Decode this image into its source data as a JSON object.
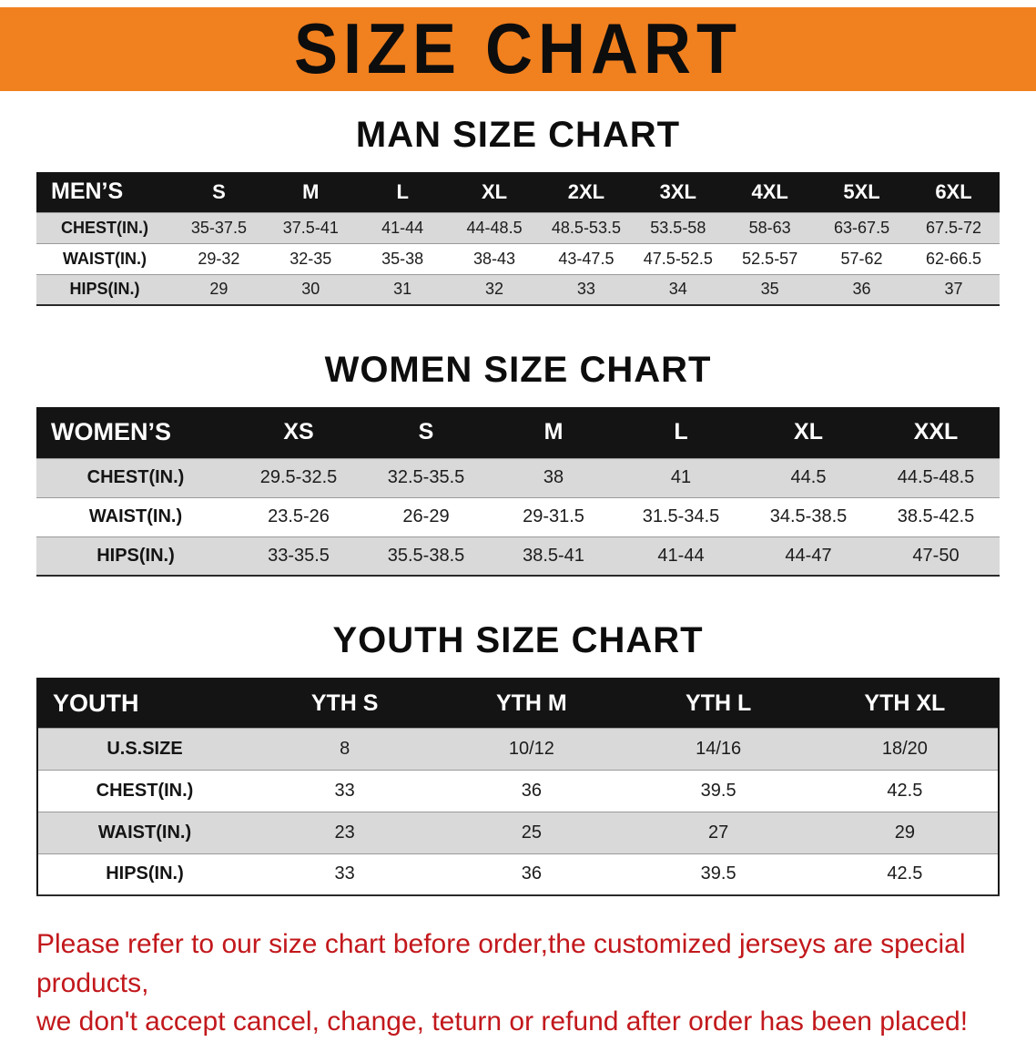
{
  "banner": {
    "title": "SIZE CHART"
  },
  "colors": {
    "banner_bg": "#f1801f",
    "table_header_bg": "#141414",
    "row_shade": "#d9d9d9",
    "notice_text": "#c2181c"
  },
  "sections": [
    {
      "id": "men",
      "heading": "MAN SIZE CHART",
      "label": "MEN’S",
      "columns": [
        "S",
        "M",
        "L",
        "XL",
        "2XL",
        "3XL",
        "4XL",
        "5XL",
        "6XL"
      ],
      "rows": [
        {
          "label": "CHEST(IN.)",
          "values": [
            "35-37.5",
            "37.5-41",
            "41-44",
            "44-48.5",
            "48.5-53.5",
            "53.5-58",
            "58-63",
            "63-67.5",
            "67.5-72"
          ]
        },
        {
          "label": "WAIST(IN.)",
          "values": [
            "29-32",
            "32-35",
            "35-38",
            "38-43",
            "43-47.5",
            "47.5-52.5",
            "52.5-57",
            "57-62",
            "62-66.5"
          ]
        },
        {
          "label": "HIPS(IN.)",
          "values": [
            "29",
            "30",
            "31",
            "32",
            "33",
            "34",
            "35",
            "36",
            "37"
          ]
        }
      ]
    },
    {
      "id": "women",
      "heading": "WOMEN SIZE CHART",
      "label": "WOMEN’S",
      "columns": [
        "XS",
        "S",
        "M",
        "L",
        "XL",
        "XXL"
      ],
      "rows": [
        {
          "label": "CHEST(IN.)",
          "values": [
            "29.5-32.5",
            "32.5-35.5",
            "38",
            "41",
            "44.5",
            "44.5-48.5"
          ]
        },
        {
          "label": "WAIST(IN.)",
          "values": [
            "23.5-26",
            "26-29",
            "29-31.5",
            "31.5-34.5",
            "34.5-38.5",
            "38.5-42.5"
          ]
        },
        {
          "label": "HIPS(IN.)",
          "values": [
            "33-35.5",
            "35.5-38.5",
            "38.5-41",
            "41-44",
            "44-47",
            "47-50"
          ]
        }
      ]
    },
    {
      "id": "youth",
      "heading": "YOUTH SIZE CHART",
      "label": "YOUTH",
      "columns": [
        "YTH S",
        "YTH M",
        "YTH L",
        "YTH XL"
      ],
      "rows": [
        {
          "label": "U.S.SIZE",
          "values": [
            "8",
            "10/12",
            "14/16",
            "18/20"
          ]
        },
        {
          "label": "CHEST(IN.)",
          "values": [
            "33",
            "36",
            "39.5",
            "42.5"
          ]
        },
        {
          "label": "WAIST(IN.)",
          "values": [
            "23",
            "25",
            "27",
            "29"
          ]
        },
        {
          "label": "HIPS(IN.)",
          "values": [
            "33",
            "36",
            "39.5",
            "42.5"
          ]
        }
      ]
    }
  ],
  "footer": {
    "line1": "Please refer to our size chart before order,the customized jerseys are special products,",
    "line2": "we don't accept cancel, change, teturn or refund after order has been placed!"
  }
}
